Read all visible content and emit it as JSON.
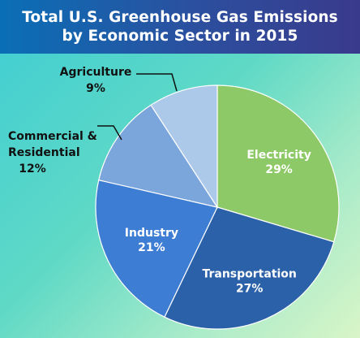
{
  "header": {
    "title_line1": "Total U.S. Greenhouse Gas Emissions",
    "title_line2": "by Economic Sector in 2015"
  },
  "colors": {
    "header_bg": "#2c4f9e",
    "background": "#5fd9c6",
    "electricity": "#8dc966",
    "transportation": "#2b61a8",
    "industry": "#3d7dd3",
    "commercial_residential": "#7ba6dc",
    "agriculture": "#adc9ea"
  },
  "chart_data": {
    "type": "pie",
    "title": "Total U.S. Greenhouse Gas Emissions by Economic Sector in 2015",
    "slices": [
      {
        "label": "Electricity",
        "value": 29,
        "display": "29%",
        "color": "#8dc966",
        "label_position": "inside"
      },
      {
        "label": "Transportation",
        "value": 27,
        "display": "27%",
        "color": "#2b61a8",
        "label_position": "inside"
      },
      {
        "label": "Industry",
        "value": 21,
        "display": "21%",
        "color": "#3d7dd3",
        "label_position": "inside"
      },
      {
        "label": "Commercial & Residential",
        "label_lines": [
          "Commercial &",
          "Residential"
        ],
        "value": 12,
        "display": "12%",
        "color": "#7ba6dc",
        "label_position": "outside"
      },
      {
        "label": "Agriculture",
        "value": 9,
        "display": "9%",
        "color": "#adc9ea",
        "label_position": "outside"
      }
    ]
  }
}
